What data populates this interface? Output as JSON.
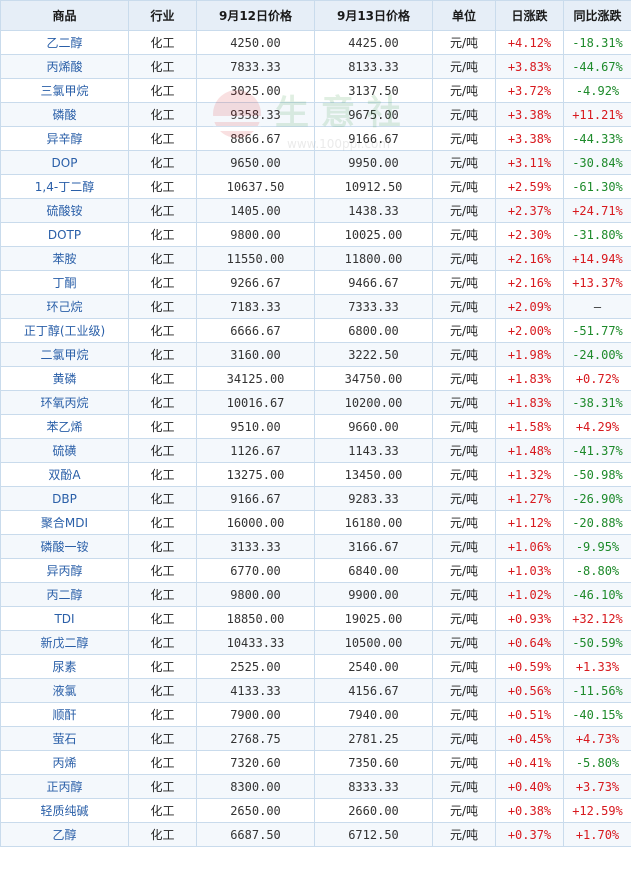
{
  "header": {
    "col_name": "商品",
    "col_industry": "行业",
    "col_price1": "9月12日价格",
    "col_price2": "9月13日价格",
    "col_unit": "单位",
    "col_daily": "日涨跌",
    "col_yoy": "同比涨跌"
  },
  "watermark": {
    "text": "生 意 社",
    "url": "www.100ppi.com",
    "icon": "sunrise-logo-icon"
  },
  "colors": {
    "up": "#d8191e",
    "down": "#1d8a2a",
    "link": "#2a5fa8",
    "header_bg": "#e6eef7",
    "border": "#c9dbec"
  },
  "rows": [
    {
      "name": "乙二醇",
      "industry": "化工",
      "p1": "4250.00",
      "p2": "4425.00",
      "unit": "元/吨",
      "daily": "+4.12%",
      "yoy": "-18.31%"
    },
    {
      "name": "丙烯酸",
      "industry": "化工",
      "p1": "7833.33",
      "p2": "8133.33",
      "unit": "元/吨",
      "daily": "+3.83%",
      "yoy": "-44.67%"
    },
    {
      "name": "三氯甲烷",
      "industry": "化工",
      "p1": "3025.00",
      "p2": "3137.50",
      "unit": "元/吨",
      "daily": "+3.72%",
      "yoy": "-4.92%"
    },
    {
      "name": "磷酸",
      "industry": "化工",
      "p1": "9358.33",
      "p2": "9675.00",
      "unit": "元/吨",
      "daily": "+3.38%",
      "yoy": "+11.21%"
    },
    {
      "name": "异辛醇",
      "industry": "化工",
      "p1": "8866.67",
      "p2": "9166.67",
      "unit": "元/吨",
      "daily": "+3.38%",
      "yoy": "-44.33%"
    },
    {
      "name": "DOP",
      "industry": "化工",
      "p1": "9650.00",
      "p2": "9950.00",
      "unit": "元/吨",
      "daily": "+3.11%",
      "yoy": "-30.84%"
    },
    {
      "name": "1,4-丁二醇",
      "industry": "化工",
      "p1": "10637.50",
      "p2": "10912.50",
      "unit": "元/吨",
      "daily": "+2.59%",
      "yoy": "-61.30%"
    },
    {
      "name": "硫酸铵",
      "industry": "化工",
      "p1": "1405.00",
      "p2": "1438.33",
      "unit": "元/吨",
      "daily": "+2.37%",
      "yoy": "+24.71%"
    },
    {
      "name": "DOTP",
      "industry": "化工",
      "p1": "9800.00",
      "p2": "10025.00",
      "unit": "元/吨",
      "daily": "+2.30%",
      "yoy": "-31.80%"
    },
    {
      "name": "苯胺",
      "industry": "化工",
      "p1": "11550.00",
      "p2": "11800.00",
      "unit": "元/吨",
      "daily": "+2.16%",
      "yoy": "+14.94%"
    },
    {
      "name": "丁酮",
      "industry": "化工",
      "p1": "9266.67",
      "p2": "9466.67",
      "unit": "元/吨",
      "daily": "+2.16%",
      "yoy": "+13.37%"
    },
    {
      "name": "环己烷",
      "industry": "化工",
      "p1": "7183.33",
      "p2": "7333.33",
      "unit": "元/吨",
      "daily": "+2.09%",
      "yoy": "—"
    },
    {
      "name": "正丁醇(工业级)",
      "industry": "化工",
      "p1": "6666.67",
      "p2": "6800.00",
      "unit": "元/吨",
      "daily": "+2.00%",
      "yoy": "-51.77%"
    },
    {
      "name": "二氯甲烷",
      "industry": "化工",
      "p1": "3160.00",
      "p2": "3222.50",
      "unit": "元/吨",
      "daily": "+1.98%",
      "yoy": "-24.00%"
    },
    {
      "name": "黄磷",
      "industry": "化工",
      "p1": "34125.00",
      "p2": "34750.00",
      "unit": "元/吨",
      "daily": "+1.83%",
      "yoy": "+0.72%"
    },
    {
      "name": "环氧丙烷",
      "industry": "化工",
      "p1": "10016.67",
      "p2": "10200.00",
      "unit": "元/吨",
      "daily": "+1.83%",
      "yoy": "-38.31%"
    },
    {
      "name": "苯乙烯",
      "industry": "化工",
      "p1": "9510.00",
      "p2": "9660.00",
      "unit": "元/吨",
      "daily": "+1.58%",
      "yoy": "+4.29%"
    },
    {
      "name": "硫磺",
      "industry": "化工",
      "p1": "1126.67",
      "p2": "1143.33",
      "unit": "元/吨",
      "daily": "+1.48%",
      "yoy": "-41.37%"
    },
    {
      "name": "双酚A",
      "industry": "化工",
      "p1": "13275.00",
      "p2": "13450.00",
      "unit": "元/吨",
      "daily": "+1.32%",
      "yoy": "-50.98%"
    },
    {
      "name": "DBP",
      "industry": "化工",
      "p1": "9166.67",
      "p2": "9283.33",
      "unit": "元/吨",
      "daily": "+1.27%",
      "yoy": "-26.90%"
    },
    {
      "name": "聚合MDI",
      "industry": "化工",
      "p1": "16000.00",
      "p2": "16180.00",
      "unit": "元/吨",
      "daily": "+1.12%",
      "yoy": "-20.88%"
    },
    {
      "name": "磷酸一铵",
      "industry": "化工",
      "p1": "3133.33",
      "p2": "3166.67",
      "unit": "元/吨",
      "daily": "+1.06%",
      "yoy": "-9.95%"
    },
    {
      "name": "异丙醇",
      "industry": "化工",
      "p1": "6770.00",
      "p2": "6840.00",
      "unit": "元/吨",
      "daily": "+1.03%",
      "yoy": "-8.80%"
    },
    {
      "name": "丙二醇",
      "industry": "化工",
      "p1": "9800.00",
      "p2": "9900.00",
      "unit": "元/吨",
      "daily": "+1.02%",
      "yoy": "-46.10%"
    },
    {
      "name": "TDI",
      "industry": "化工",
      "p1": "18850.00",
      "p2": "19025.00",
      "unit": "元/吨",
      "daily": "+0.93%",
      "yoy": "+32.12%"
    },
    {
      "name": "新戊二醇",
      "industry": "化工",
      "p1": "10433.33",
      "p2": "10500.00",
      "unit": "元/吨",
      "daily": "+0.64%",
      "yoy": "-50.59%"
    },
    {
      "name": "尿素",
      "industry": "化工",
      "p1": "2525.00",
      "p2": "2540.00",
      "unit": "元/吨",
      "daily": "+0.59%",
      "yoy": "+1.33%"
    },
    {
      "name": "液氯",
      "industry": "化工",
      "p1": "4133.33",
      "p2": "4156.67",
      "unit": "元/吨",
      "daily": "+0.56%",
      "yoy": "-11.56%"
    },
    {
      "name": "顺酐",
      "industry": "化工",
      "p1": "7900.00",
      "p2": "7940.00",
      "unit": "元/吨",
      "daily": "+0.51%",
      "yoy": "-40.15%"
    },
    {
      "name": "萤石",
      "industry": "化工",
      "p1": "2768.75",
      "p2": "2781.25",
      "unit": "元/吨",
      "daily": "+0.45%",
      "yoy": "+4.73%"
    },
    {
      "name": "丙烯",
      "industry": "化工",
      "p1": "7320.60",
      "p2": "7350.60",
      "unit": "元/吨",
      "daily": "+0.41%",
      "yoy": "-5.80%"
    },
    {
      "name": "正丙醇",
      "industry": "化工",
      "p1": "8300.00",
      "p2": "8333.33",
      "unit": "元/吨",
      "daily": "+0.40%",
      "yoy": "+3.73%"
    },
    {
      "name": "轻质纯碱",
      "industry": "化工",
      "p1": "2650.00",
      "p2": "2660.00",
      "unit": "元/吨",
      "daily": "+0.38%",
      "yoy": "+12.59%"
    },
    {
      "name": "乙醇",
      "industry": "化工",
      "p1": "6687.50",
      "p2": "6712.50",
      "unit": "元/吨",
      "daily": "+0.37%",
      "yoy": "+1.70%"
    }
  ]
}
